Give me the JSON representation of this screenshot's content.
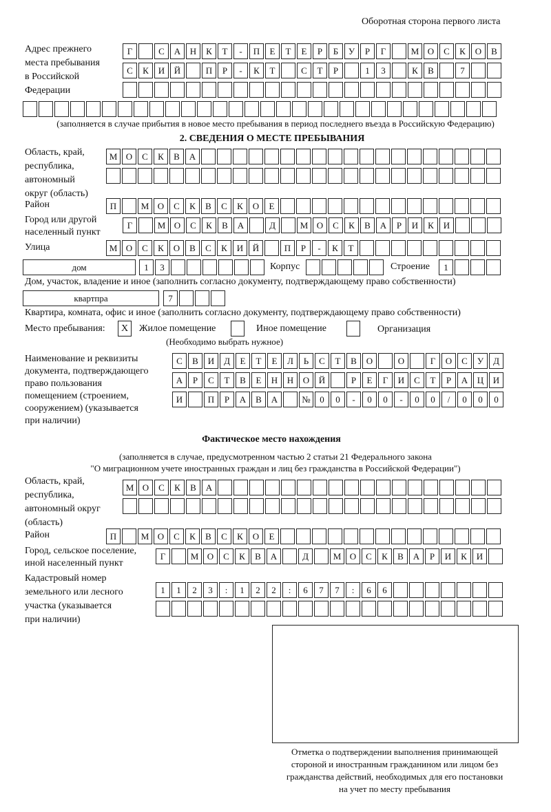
{
  "header": "Оборотная сторона первого листа",
  "prev_address": {
    "label": [
      "Адрес прежнего",
      "места пребывания",
      "в Российской",
      "Федерации"
    ],
    "rows": [
      {
        "chars": [
          "Г",
          "",
          "С",
          "А",
          "Н",
          "К",
          "Т",
          "-",
          "П",
          "Е",
          "Т",
          "Е",
          "Р",
          "Б",
          "У",
          "Р",
          "Г",
          "",
          "М",
          "О",
          "С",
          "К",
          "О",
          "В"
        ]
      },
      {
        "chars": [
          "С",
          "К",
          "И",
          "Й",
          "",
          "П",
          "Р",
          "-",
          "К",
          "Т",
          "",
          "С",
          "Т",
          "Р",
          "",
          "1",
          "3",
          "",
          "К",
          "В",
          "",
          "7",
          "",
          ""
        ]
      },
      {
        "chars": [
          "",
          "",
          "",
          "",
          "",
          "",
          "",
          "",
          "",
          "",
          "",
          "",
          "",
          "",
          "",
          "",
          "",
          "",
          "",
          "",
          "",
          "",
          "",
          ""
        ]
      },
      {
        "chars": [
          "",
          "",
          "",
          "",
          "",
          "",
          "",
          "",
          "",
          "",
          "",
          "",
          "",
          "",
          "",
          "",
          "",
          "",
          "",
          "",
          "",
          "",
          "",
          "",
          "",
          "",
          "",
          "",
          "",
          ""
        ]
      }
    ],
    "note": "(заполняется в случае прибытия в новое место пребывания в период последнего въезда в Российскую Федерацию)"
  },
  "section2": {
    "title": "2. СВЕДЕНИЯ О МЕСТЕ ПРЕБЫВАНИЯ",
    "region_label": [
      "Область, край,",
      "республика,",
      "автономный",
      "округ (область)"
    ],
    "region_rows": [
      {
        "chars": [
          "М",
          "О",
          "С",
          "К",
          "В",
          "А",
          "",
          "",
          "",
          "",
          "",
          "",
          "",
          "",
          "",
          "",
          "",
          "",
          "",
          "",
          "",
          "",
          "",
          "",
          ""
        ]
      },
      {
        "chars": [
          "",
          "",
          "",
          "",
          "",
          "",
          "",
          "",
          "",
          "",
          "",
          "",
          "",
          "",
          "",
          "",
          "",
          "",
          "",
          "",
          "",
          "",
          "",
          "",
          ""
        ]
      }
    ],
    "district_label": "Район",
    "district_row": {
      "chars": [
        "П",
        "",
        "М",
        "О",
        "С",
        "К",
        "В",
        "С",
        "К",
        "О",
        "Е",
        "",
        "",
        "",
        "",
        "",
        "",
        "",
        "",
        "",
        "",
        "",
        "",
        "",
        ""
      ]
    },
    "city_label": [
      "Город или другой",
      "населенный пункт"
    ],
    "city_row": {
      "chars": [
        "Г",
        "",
        "М",
        "О",
        "С",
        "К",
        "В",
        "А",
        "",
        "Д",
        "",
        "М",
        "О",
        "С",
        "К",
        "В",
        "А",
        "Р",
        "И",
        "К",
        "И",
        "",
        "",
        ""
      ]
    },
    "street_label": "Улица",
    "street_row": {
      "chars": [
        "М",
        "О",
        "С",
        "К",
        "О",
        "В",
        "С",
        "К",
        "И",
        "Й",
        "",
        "П",
        "Р",
        "-",
        "К",
        "Т",
        "",
        "",
        "",
        "",
        "",
        "",
        "",
        "",
        ""
      ]
    },
    "house_type": "дом",
    "house_row": {
      "chars": [
        "1",
        "3",
        "",
        "",
        "",
        "",
        "",
        ""
      ]
    },
    "korpus_label": "Корпус",
    "korpus_row": {
      "chars": [
        "",
        "",
        "",
        "",
        ""
      ]
    },
    "building_label": "Строение",
    "building_row": {
      "chars": [
        "1",
        "",
        "",
        ""
      ]
    },
    "house_note": "Дом, участок, владение и иное (заполнить согласно документу, подтверждающему право собственности)",
    "apt_type": "квартпра",
    "apt_row": {
      "chars": [
        "7",
        "",
        "",
        ""
      ]
    },
    "apt_note": "Квартира, комната, офис и иное (заполнить согласно документу, подтверждающему право собственности)",
    "stay_label": "Место пребывания:",
    "stay_options": [
      {
        "label": "Жилое помещение",
        "mark": "X"
      },
      {
        "label": "Иное помещение",
        "mark": ""
      },
      {
        "label": "Организация",
        "mark": ""
      }
    ],
    "stay_note": "(Необходимо выбрать нужное)",
    "doc_label": [
      "Наименование и реквизиты",
      "документа, подтверждающего",
      "право пользования",
      "помещением (строением,",
      "сооружением) (указывается",
      "при наличии)"
    ],
    "doc_rows": [
      {
        "chars": [
          "С",
          "В",
          "И",
          "Д",
          "Е",
          "Т",
          "Е",
          "Л",
          "Ь",
          "С",
          "Т",
          "В",
          "О",
          "",
          "О",
          "",
          "Г",
          "О",
          "С",
          "У",
          "Д"
        ]
      },
      {
        "chars": [
          "А",
          "Р",
          "С",
          "Т",
          "В",
          "Е",
          "Н",
          "Н",
          "О",
          "Й",
          "",
          "Р",
          "Е",
          "Г",
          "И",
          "С",
          "Т",
          "Р",
          "А",
          "Ц",
          "И"
        ]
      },
      {
        "chars": [
          "И",
          "",
          "П",
          "Р",
          "А",
          "В",
          "А",
          "",
          "№",
          "0",
          "0",
          "-",
          "0",
          "0",
          "-",
          "0",
          "0",
          "/",
          "0",
          "0",
          "0"
        ]
      }
    ]
  },
  "actual": {
    "title": "Фактическое место нахождения",
    "note": [
      "(заполняется в случае, предусмотренном частью 2 статьи 21 Федерального закона",
      "\"О миграционном учете иностранных граждан и лиц без гражданства в Российской Федерации\")"
    ],
    "region_label": [
      "Область, край,",
      "республика,",
      "автономный округ",
      "(область)"
    ],
    "region_rows": [
      {
        "chars": [
          "М",
          "О",
          "С",
          "К",
          "В",
          "А",
          "",
          "",
          "",
          "",
          "",
          "",
          "",
          "",
          "",
          "",
          "",
          "",
          "",
          "",
          "",
          "",
          "",
          ""
        ]
      },
      {
        "chars": [
          "",
          "",
          "",
          "",
          "",
          "",
          "",
          "",
          "",
          "",
          "",
          "",
          "",
          "",
          "",
          "",
          "",
          "",
          "",
          "",
          "",
          "",
          "",
          ""
        ]
      }
    ],
    "district_label": "Район",
    "district_row": {
      "chars": [
        "П",
        "",
        "М",
        "О",
        "С",
        "К",
        "В",
        "С",
        "К",
        "О",
        "Е",
        "",
        "",
        "",
        "",
        "",
        "",
        "",
        "",
        "",
        "",
        "",
        "",
        "",
        ""
      ]
    },
    "city_label": [
      "Город, сельское поселение,",
      "иной населенный пункт"
    ],
    "city_row": {
      "chars": [
        "Г",
        "",
        "М",
        "О",
        "С",
        "К",
        "В",
        "А",
        "",
        "Д",
        "",
        "М",
        "О",
        "С",
        "К",
        "В",
        "А",
        "Р",
        "И",
        "К",
        "И",
        ""
      ]
    },
    "cadastre_label": [
      "Кадастровый номер",
      "земельного или лесного",
      "участка (указывается",
      "при наличии)"
    ],
    "cadastre_rows": [
      {
        "chars": [
          "1",
          "1",
          "2",
          "3",
          ":",
          "1",
          "2",
          "2",
          ":",
          "6",
          "7",
          "7",
          ":",
          "6",
          "6",
          "",
          "",
          "",
          "",
          "",
          "",
          ""
        ]
      },
      {
        "chars": [
          "",
          "",
          "",
          "",
          "",
          "",
          "",
          "",
          "",
          "",
          "",
          "",
          "",
          "",
          "",
          "",
          "",
          "",
          "",
          "",
          "",
          ""
        ]
      }
    ],
    "stamp_caption": [
      "Отметка о подтверждении выполнения принимающей",
      "стороной и иностранным гражданином или лицом без",
      "гражданства действий, необходимых для его постановки",
      "на учет по месту пребывания"
    ]
  }
}
